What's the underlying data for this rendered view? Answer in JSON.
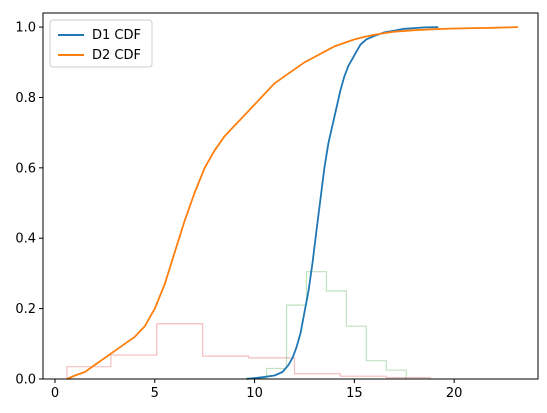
{
  "chart_data": {
    "type": "line",
    "title": "",
    "xlabel": "",
    "ylabel": "",
    "xlim": [
      -0.6,
      24.2
    ],
    "ylim": [
      0,
      1.04
    ],
    "xticks": [
      0,
      5,
      10,
      15,
      20
    ],
    "yticks": [
      0.0,
      0.2,
      0.4,
      0.6,
      0.8,
      1.0
    ],
    "xtick_labels": [
      "0",
      "5",
      "10",
      "15",
      "20"
    ],
    "ytick_labels": [
      "0.0",
      "0.2",
      "0.4",
      "0.6",
      "0.8",
      "1.0"
    ],
    "grid": false,
    "legend": {
      "placement": "top-left"
    },
    "series": [
      {
        "name": "D1 CDF",
        "kind": "cdf-line",
        "color": "#1f77b4",
        "x": [
          9.6,
          10.4,
          11.0,
          11.4,
          11.7,
          11.9,
          12.1,
          12.3,
          12.5,
          12.7,
          12.9,
          13.1,
          13.3,
          13.5,
          13.7,
          13.9,
          14.1,
          14.3,
          14.5,
          14.7,
          14.9,
          15.1,
          15.3,
          15.6,
          16.0,
          16.5,
          17.0,
          17.5,
          18.0,
          18.5,
          19.2
        ],
        "y": [
          0.0,
          0.005,
          0.01,
          0.02,
          0.04,
          0.06,
          0.09,
          0.13,
          0.19,
          0.25,
          0.33,
          0.42,
          0.51,
          0.6,
          0.67,
          0.72,
          0.77,
          0.82,
          0.86,
          0.89,
          0.91,
          0.93,
          0.95,
          0.965,
          0.975,
          0.985,
          0.99,
          0.995,
          0.997,
          0.999,
          1.0
        ]
      },
      {
        "name": "D2 CDF",
        "kind": "cdf-line",
        "color": "#ff7f0e",
        "x": [
          0.6,
          1.0,
          1.5,
          2.0,
          2.5,
          3.0,
          3.5,
          4.0,
          4.5,
          5.0,
          5.5,
          6.0,
          6.5,
          7.0,
          7.5,
          8.0,
          8.5,
          9.0,
          9.5,
          10.0,
          10.5,
          11.0,
          11.5,
          12.0,
          12.5,
          13.0,
          13.5,
          14.0,
          14.5,
          15.0,
          15.5,
          16.0,
          16.5,
          17.0,
          18.0,
          19.0,
          20.0,
          21.0,
          22.0,
          23.2
        ],
        "y": [
          0.0,
          0.01,
          0.02,
          0.04,
          0.06,
          0.08,
          0.1,
          0.12,
          0.15,
          0.2,
          0.27,
          0.36,
          0.45,
          0.53,
          0.6,
          0.65,
          0.69,
          0.72,
          0.75,
          0.78,
          0.81,
          0.84,
          0.86,
          0.88,
          0.9,
          0.915,
          0.93,
          0.945,
          0.955,
          0.965,
          0.972,
          0.978,
          0.983,
          0.987,
          0.991,
          0.994,
          0.996,
          0.997,
          0.998,
          1.0
        ]
      },
      {
        "name": "",
        "kind": "step-histogram",
        "color": "#2ca02c",
        "opacity": 0.3,
        "bin_edges": [
          9.6,
          10.6,
          11.6,
          12.6,
          13.6,
          14.6,
          15.6,
          16.6,
          17.6
        ],
        "values": [
          0.003,
          0.03,
          0.21,
          0.305,
          0.25,
          0.15,
          0.052,
          0.025
        ]
      },
      {
        "name": "",
        "kind": "step-histogram",
        "color": "#d62728",
        "opacity": 0.3,
        "bin_edges": [
          0.6,
          2.8,
          5.1,
          7.4,
          9.7,
          12.0,
          14.3,
          16.6,
          18.8
        ],
        "values": [
          0.035,
          0.068,
          0.157,
          0.065,
          0.06,
          0.015,
          0.008,
          0.004
        ]
      }
    ]
  }
}
